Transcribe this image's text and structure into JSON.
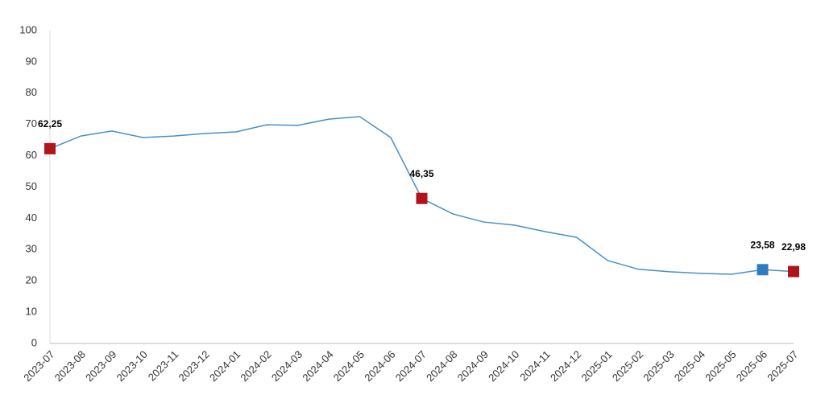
{
  "chart_data": {
    "type": "line",
    "categories": [
      "2023-07",
      "2023-08",
      "2023-09",
      "2023-10",
      "2023-11",
      "2023-12",
      "2024-01",
      "2024-02",
      "2024-03",
      "2024-04",
      "2024-05",
      "2024-06",
      "2024-07",
      "2024-08",
      "2024-09",
      "2024-10",
      "2024-11",
      "2024-12",
      "2025-01",
      "2025-02",
      "2025-03",
      "2025-04",
      "2025-05",
      "2025-06",
      "2025-07"
    ],
    "values": [
      62.25,
      66.3,
      67.9,
      65.8,
      66.3,
      67.1,
      67.6,
      69.9,
      69.7,
      71.7,
      72.5,
      65.8,
      46.35,
      41.4,
      38.8,
      37.8,
      35.7,
      33.9,
      26.5,
      23.7,
      22.9,
      22.4,
      22.1,
      23.58,
      22.98
    ],
    "value_labels": [
      "62,25",
      null,
      null,
      null,
      null,
      null,
      null,
      null,
      null,
      null,
      null,
      null,
      "46,35",
      null,
      null,
      null,
      null,
      null,
      null,
      null,
      null,
      null,
      null,
      "23,58",
      "22,98"
    ],
    "marker_colors": [
      "#b0141c",
      null,
      null,
      null,
      null,
      null,
      null,
      null,
      null,
      null,
      null,
      null,
      "#b0141c",
      null,
      null,
      null,
      null,
      null,
      null,
      null,
      null,
      null,
      null,
      "#2f7bbf",
      "#b0141c"
    ],
    "color": "#4a8fc4",
    "ylim": [
      0,
      100
    ],
    "yticks": [
      0,
      10,
      20,
      30,
      40,
      50,
      60,
      70,
      80,
      90,
      100
    ],
    "grid": false
  }
}
